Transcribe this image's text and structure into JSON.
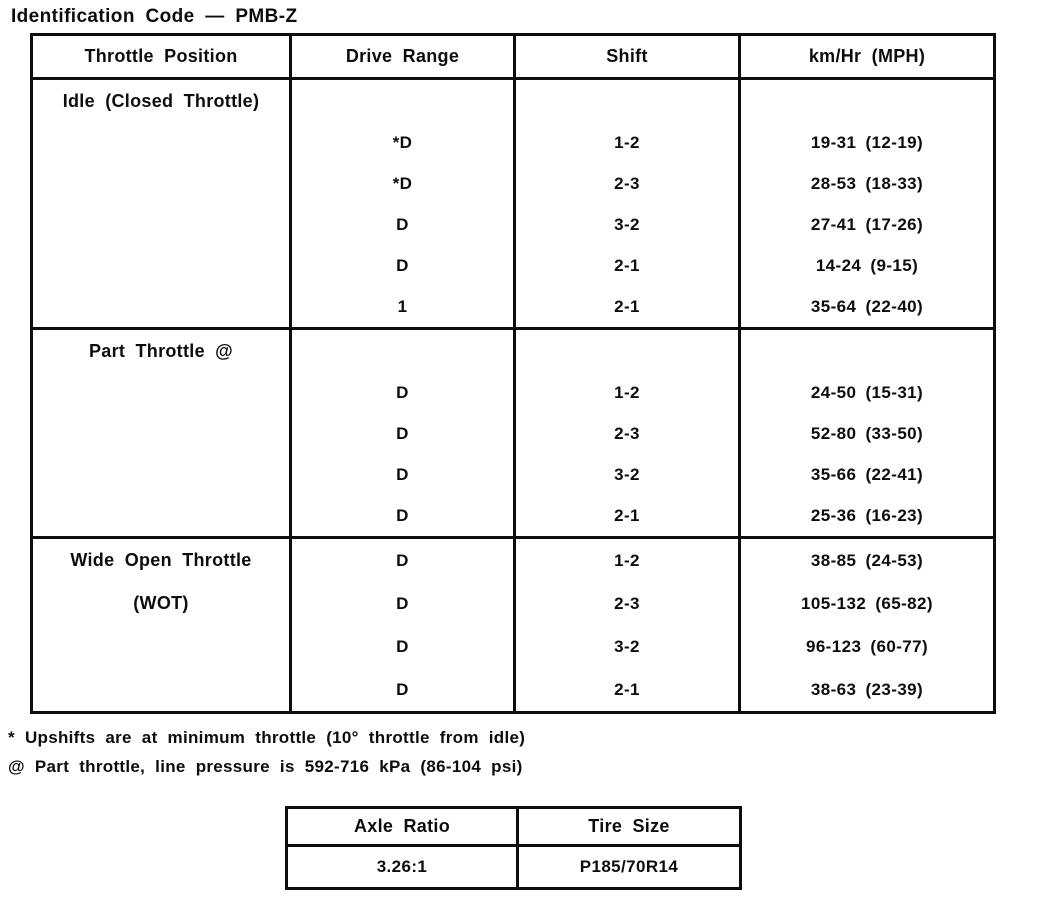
{
  "colors": {
    "page_bg": "#ffffff",
    "ink": "#0d0d0d"
  },
  "title": "Identification Code — PMB-Z",
  "shift_table": {
    "headers": {
      "throttle_position": "Throttle Position",
      "drive_range": "Drive Range",
      "shift": "Shift",
      "speed": "km/Hr (MPH)"
    },
    "sections": [
      {
        "label": "Idle (Closed Throttle)",
        "label2": "",
        "rows": [
          {
            "drive": "*D",
            "shift": "1-2",
            "speed": "19-31 (12-19)"
          },
          {
            "drive": "*D",
            "shift": "2-3",
            "speed": "28-53 (18-33)"
          },
          {
            "drive": "D",
            "shift": "3-2",
            "speed": "27-41 (17-26)"
          },
          {
            "drive": "D",
            "shift": "2-1",
            "speed": "14-24 (9-15)"
          },
          {
            "drive": "1",
            "shift": "2-1",
            "speed": "35-64 (22-40)"
          }
        ]
      },
      {
        "label": "Part Throttle @",
        "label2": "",
        "rows": [
          {
            "drive": "D",
            "shift": "1-2",
            "speed": "24-50 (15-31)"
          },
          {
            "drive": "D",
            "shift": "2-3",
            "speed": "52-80 (33-50)"
          },
          {
            "drive": "D",
            "shift": "3-2",
            "speed": "35-66 (22-41)"
          },
          {
            "drive": "D",
            "shift": "2-1",
            "speed": "25-36 (16-23)"
          }
        ]
      },
      {
        "label": "Wide Open Throttle",
        "label2": "(WOT)",
        "rows": [
          {
            "drive": "D",
            "shift": "1-2",
            "speed": "38-85 (24-53)"
          },
          {
            "drive": "D",
            "shift": "2-3",
            "speed": "105-132 (65-82)"
          },
          {
            "drive": "D",
            "shift": "3-2",
            "speed": "96-123 (60-77)"
          },
          {
            "drive": "D",
            "shift": "2-1",
            "speed": "38-63 (23-39)"
          }
        ]
      }
    ]
  },
  "footnotes": {
    "upshift_note": "* Upshifts are at minimum throttle (10° throttle from idle)",
    "pressure_note": "@ Part throttle, line pressure is 592-716 kPa (86-104 psi)"
  },
  "spec_table": {
    "headers": {
      "axle_ratio": "Axle Ratio",
      "tire_size": "Tire Size"
    },
    "values": {
      "axle_ratio": "3.26:1",
      "tire_size": "P185/70R14"
    }
  }
}
